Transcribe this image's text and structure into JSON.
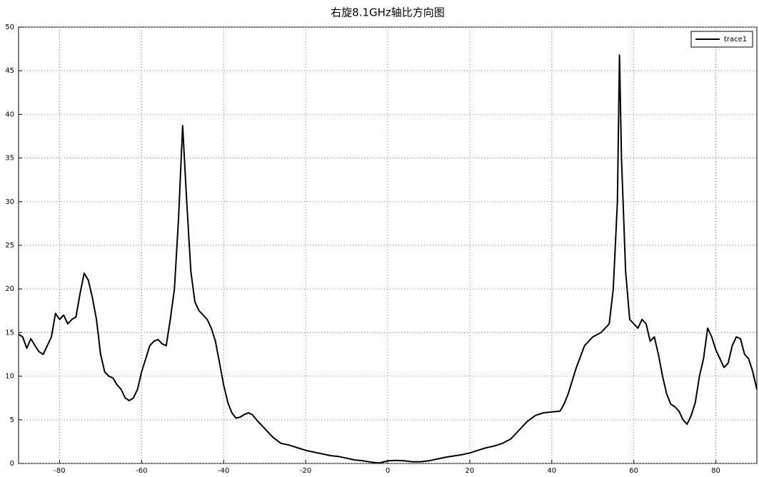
{
  "chart_data": {
    "type": "line",
    "title": "右旋8.1GHz轴比方向图",
    "x": [
      -90,
      -89,
      -88,
      -87,
      -86,
      -85,
      -84,
      -83,
      -82,
      -81,
      -80,
      -79,
      -78,
      -77,
      -76,
      -75,
      -74,
      -73,
      -72,
      -71,
      -70,
      -69,
      -68,
      -67,
      -66,
      -65,
      -64,
      -63,
      -62,
      -61,
      -60,
      -59,
      -58,
      -57,
      -56,
      -55,
      -54,
      -53,
      -52,
      -51,
      -50,
      -49,
      -48,
      -47,
      -46,
      -45,
      -44,
      -43,
      -42,
      -41,
      -40,
      -39,
      -38,
      -37,
      -36,
      -35,
      -34,
      -33,
      -32,
      -30,
      -28,
      -26,
      -24,
      -22,
      -20,
      -18,
      -16,
      -14,
      -12,
      -10,
      -8,
      -6,
      -4,
      -2,
      0,
      2,
      4,
      6,
      8,
      10,
      12,
      14,
      16,
      18,
      20,
      22,
      24,
      26,
      28,
      30,
      32,
      34,
      36,
      38,
      40,
      42,
      43,
      44,
      46,
      48,
      50,
      52,
      53,
      54,
      55,
      56,
      56.5,
      57,
      58,
      59,
      60,
      61,
      62,
      63,
      64,
      65,
      66,
      67,
      68,
      69,
      70,
      71,
      72,
      73,
      74,
      75,
      76,
      77,
      78,
      79,
      80,
      81,
      82,
      83,
      84,
      85,
      86,
      87,
      88,
      89,
      90
    ],
    "series": [
      {
        "name": "trace1",
        "color": "#000000",
        "values": [
          14.8,
          14.5,
          13.2,
          14.3,
          13.5,
          12.8,
          12.5,
          13.5,
          14.5,
          17.2,
          16.5,
          17.0,
          16.0,
          16.5,
          16.8,
          19.5,
          21.8,
          21.0,
          19,
          16.5,
          12.5,
          10.5,
          10,
          9.8,
          9,
          8.5,
          7.5,
          7.2,
          7.5,
          8.5,
          10.5,
          12,
          13.5,
          14,
          14.2,
          13.7,
          13.5,
          16.5,
          20,
          28,
          38.7,
          30,
          22,
          18.5,
          17.5,
          17,
          16.5,
          15.5,
          14,
          11.5,
          9,
          7,
          5.8,
          5.2,
          5.3,
          5.6,
          5.8,
          5.6,
          5,
          4,
          3,
          2.3,
          2.1,
          1.8,
          1.5,
          1.3,
          1.1,
          0.9,
          0.8,
          0.6,
          0.4,
          0.3,
          0.15,
          0.05,
          0.3,
          0.35,
          0.3,
          0.2,
          0.2,
          0.3,
          0.5,
          0.7,
          0.85,
          1.0,
          1.2,
          1.5,
          1.8,
          2.0,
          2.3,
          2.8,
          3.8,
          4.8,
          5.5,
          5.8,
          5.9,
          6,
          6.8,
          8,
          11,
          13.5,
          14.5,
          15,
          15.5,
          16,
          20,
          30,
          46.8,
          35,
          22,
          16.5,
          16,
          15.5,
          16.5,
          16,
          14,
          14.5,
          12.5,
          10,
          8,
          6.8,
          6.5,
          6,
          5,
          4.5,
          5.5,
          7,
          10,
          12,
          15.5,
          14.5,
          13,
          12,
          11,
          11.5,
          13.5,
          14.5,
          14.3,
          12.5,
          12,
          10.5,
          8.5
        ]
      }
    ],
    "xlim": [
      -90,
      90
    ],
    "ylim": [
      0,
      50
    ],
    "xticks": [
      -80,
      -60,
      -40,
      -20,
      0,
      20,
      40,
      60,
      80
    ],
    "yticks": [
      0,
      5,
      10,
      15,
      20,
      25,
      30,
      35,
      40,
      45,
      50
    ],
    "grid": true,
    "legend": "upper right"
  }
}
